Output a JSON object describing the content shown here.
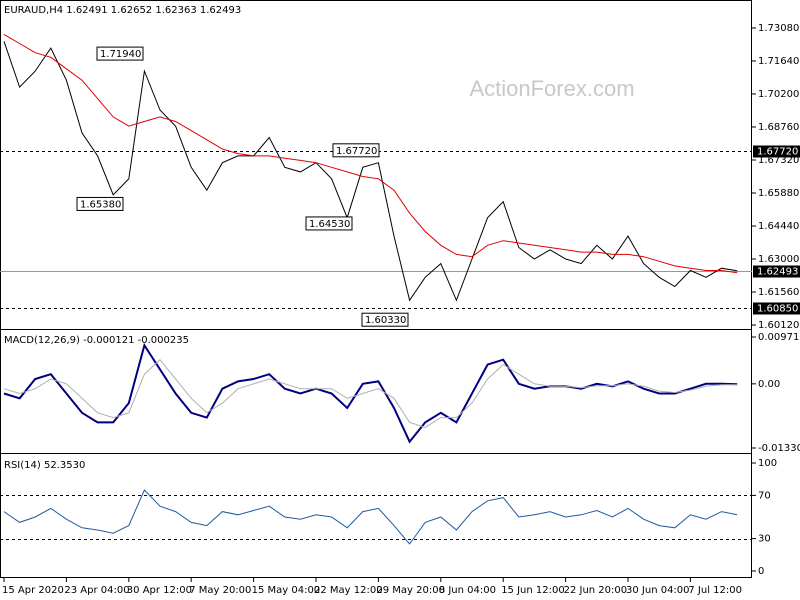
{
  "chart_data": [
    {
      "type": "line",
      "title": "EURAUD,H4  1.62491 1.62652 1.62363 1.62493",
      "watermark": "ActionForex.com",
      "categories": [
        "15 Apr 2020",
        null,
        null,
        null,
        "23 Apr 04:00",
        null,
        null,
        null,
        "30 Apr 12:00",
        null,
        null,
        null,
        "7 May 20:00",
        null,
        null,
        null,
        "15 May 04:00",
        null,
        null,
        null,
        "22 May 12:00",
        null,
        null,
        null,
        "29 May 20:00",
        null,
        null,
        null,
        "8 Jun 04:00",
        null,
        null,
        null,
        "15 Jun 12:00",
        null,
        null,
        null,
        "22 Jun 20:00",
        null,
        null,
        null,
        "30 Jun 04:00",
        null,
        null,
        null,
        "7 Jul 12:00",
        null,
        null,
        null
      ],
      "series": [
        {
          "color": "#000000",
          "values": [
            1.725,
            1.705,
            1.712,
            1.722,
            1.708,
            1.685,
            1.675,
            1.658,
            1.665,
            1.712,
            1.695,
            1.688,
            1.67,
            1.66,
            1.672,
            1.675,
            1.675,
            1.683,
            1.67,
            1.668,
            1.672,
            1.665,
            1.648,
            1.67,
            1.672,
            1.64,
            1.612,
            1.622,
            1.628,
            1.612,
            1.63,
            1.648,
            1.655,
            1.635,
            1.63,
            1.634,
            1.63,
            1.628,
            1.636,
            1.63,
            1.64,
            1.628,
            1.622,
            1.618,
            1.625,
            1.622,
            1.626,
            1.6249
          ]
        },
        {
          "color": "#e00000",
          "values": [
            1.728,
            1.724,
            1.72,
            1.718,
            1.713,
            1.708,
            1.7,
            1.692,
            1.688,
            1.69,
            1.692,
            1.69,
            1.686,
            1.682,
            1.678,
            1.676,
            1.675,
            1.675,
            1.674,
            1.673,
            1.672,
            1.67,
            1.668,
            1.666,
            1.665,
            1.66,
            1.65,
            1.642,
            1.636,
            1.632,
            1.631,
            1.636,
            1.638,
            1.637,
            1.636,
            1.635,
            1.634,
            1.633,
            1.633,
            1.632,
            1.632,
            1.631,
            1.629,
            1.627,
            1.626,
            1.625,
            1.625,
            1.624
          ]
        }
      ],
      "ylim": [
        1.5999,
        1.743
      ],
      "yticks": [
        {
          "value": 1.7308,
          "label": "1.73080"
        },
        {
          "value": 1.7164,
          "label": "1.71640"
        },
        {
          "value": 1.702,
          "label": "1.70200"
        },
        {
          "value": 1.6876,
          "label": "1.68760"
        },
        {
          "value": 1.6732,
          "label": "1.67320"
        },
        {
          "value": 1.6588,
          "label": "1.65880"
        },
        {
          "value": 1.6444,
          "label": "1.64440"
        },
        {
          "value": 1.63,
          "label": "1.63000"
        },
        {
          "value": 1.6156,
          "label": "1.61560"
        },
        {
          "value": 1.6012,
          "label": "1.60120"
        }
      ],
      "reference_lines": [
        {
          "value": 1.6772,
          "label": "1.67720",
          "dashed": true
        },
        {
          "value": 1.62493,
          "label": "1.62493",
          "dashed": false
        },
        {
          "value": 1.6085,
          "label": "1.60850",
          "dashed": true
        }
      ],
      "annotations": [
        {
          "value": 1.7194,
          "label": "1.71940"
        },
        {
          "value": 1.6538,
          "label": "1.65380"
        },
        {
          "value": 1.6453,
          "label": "1.64530"
        },
        {
          "value": 1.6772,
          "label": "1.67720"
        },
        {
          "value": 1.6033,
          "label": "1.60330"
        }
      ]
    },
    {
      "type": "line",
      "title": "MACD(12,26,9) -0.000121 -0.000235",
      "series": [
        {
          "color": "#000080",
          "values": [
            -0.002,
            -0.003,
            0.001,
            0.002,
            -0.002,
            -0.006,
            -0.008,
            -0.008,
            -0.004,
            0.008,
            0.003,
            -0.002,
            -0.006,
            -0.007,
            -0.001,
            0.0005,
            0.001,
            0.002,
            -0.001,
            -0.002,
            -0.001,
            -0.002,
            -0.005,
            0,
            0.0005,
            -0.005,
            -0.012,
            -0.008,
            -0.006,
            -0.008,
            -0.002,
            0.004,
            0.005,
            0,
            -0.001,
            -0.0005,
            -0.0005,
            -0.001,
            0,
            -0.0005,
            0.0005,
            -0.001,
            -0.002,
            -0.002,
            -0.001,
            0,
            0,
            -0.0001
          ]
        },
        {
          "color": "#b0b0b0",
          "values": [
            -0.001,
            -0.002,
            -0.001,
            0.001,
            0,
            -0.003,
            -0.006,
            -0.007,
            -0.006,
            0.002,
            0.005,
            0.001,
            -0.003,
            -0.006,
            -0.004,
            -0.001,
            0,
            0.001,
            0,
            -0.001,
            -0.001,
            -0.001,
            -0.003,
            -0.002,
            -0.001,
            -0.003,
            -0.008,
            -0.009,
            -0.007,
            -0.007,
            -0.004,
            0.001,
            0.004,
            0.002,
            0,
            -0.0005,
            -0.0005,
            -0.0008,
            -0.0004,
            -0.0004,
            0,
            -0.0005,
            -0.0015,
            -0.0018,
            -0.0013,
            -0.0005,
            -0.0002,
            -0.0002
          ]
        }
      ],
      "ylim": [
        -0.013302,
        0.009713
      ],
      "yticks": [
        0.009713,
        {
          "value": 0,
          "label": "0.00"
        },
        -0.013302
      ]
    },
    {
      "type": "line",
      "title": "RSI(14) 52.3530",
      "series": [
        {
          "color": "#1e5aa0",
          "values": [
            55,
            45,
            50,
            58,
            48,
            40,
            38,
            35,
            42,
            75,
            60,
            55,
            45,
            42,
            55,
            52,
            56,
            60,
            50,
            48,
            52,
            50,
            40,
            55,
            58,
            42,
            25,
            45,
            50,
            38,
            55,
            65,
            68,
            50,
            52,
            55,
            50,
            52,
            56,
            50,
            58,
            48,
            42,
            40,
            52,
            48,
            55,
            52
          ]
        }
      ],
      "ylim": [
        0,
        100
      ],
      "yticks": [
        100,
        70,
        30,
        0
      ],
      "reference_lines": [
        {
          "value": 70,
          "dashed": true
        },
        {
          "value": 30,
          "dashed": true
        }
      ]
    }
  ]
}
